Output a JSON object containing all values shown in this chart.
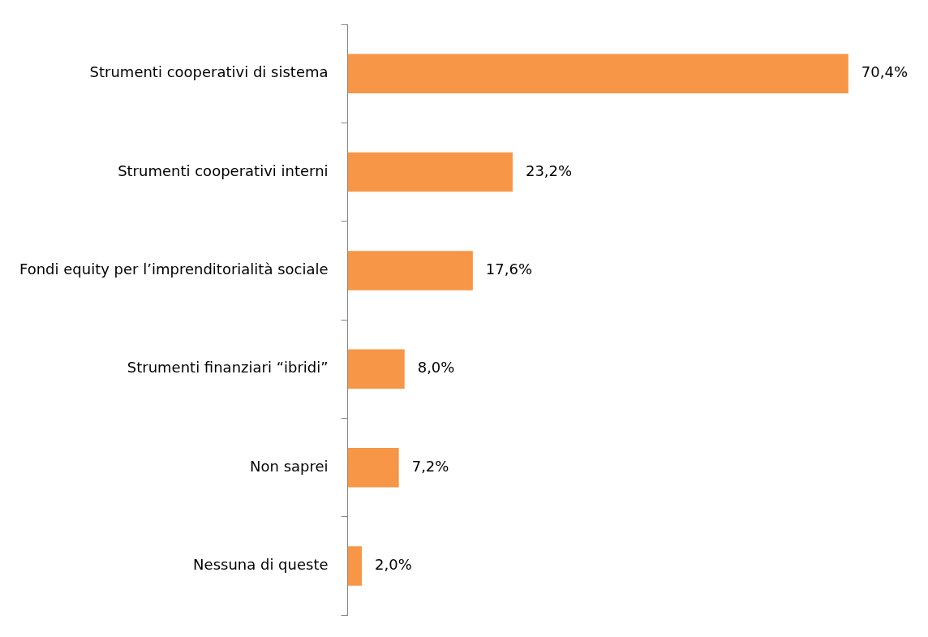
{
  "chart_data": {
    "type": "bar",
    "orientation": "horizontal",
    "categories": [
      "Strumenti cooperativi di sistema",
      "Strumenti cooperativi interni",
      "Fondi equity per l’imprenditorialità sociale",
      "Strumenti finanziari “ibridi”",
      "Non saprei",
      "Nessuna di queste"
    ],
    "values": [
      70.4,
      23.2,
      17.6,
      8.0,
      7.2,
      2.0
    ],
    "value_labels": [
      "70,4%",
      "23,2%",
      "17,6%",
      "8,0%",
      "7,2%",
      "2,0%"
    ],
    "color": "#f79646",
    "grid": false,
    "legend": false
  }
}
